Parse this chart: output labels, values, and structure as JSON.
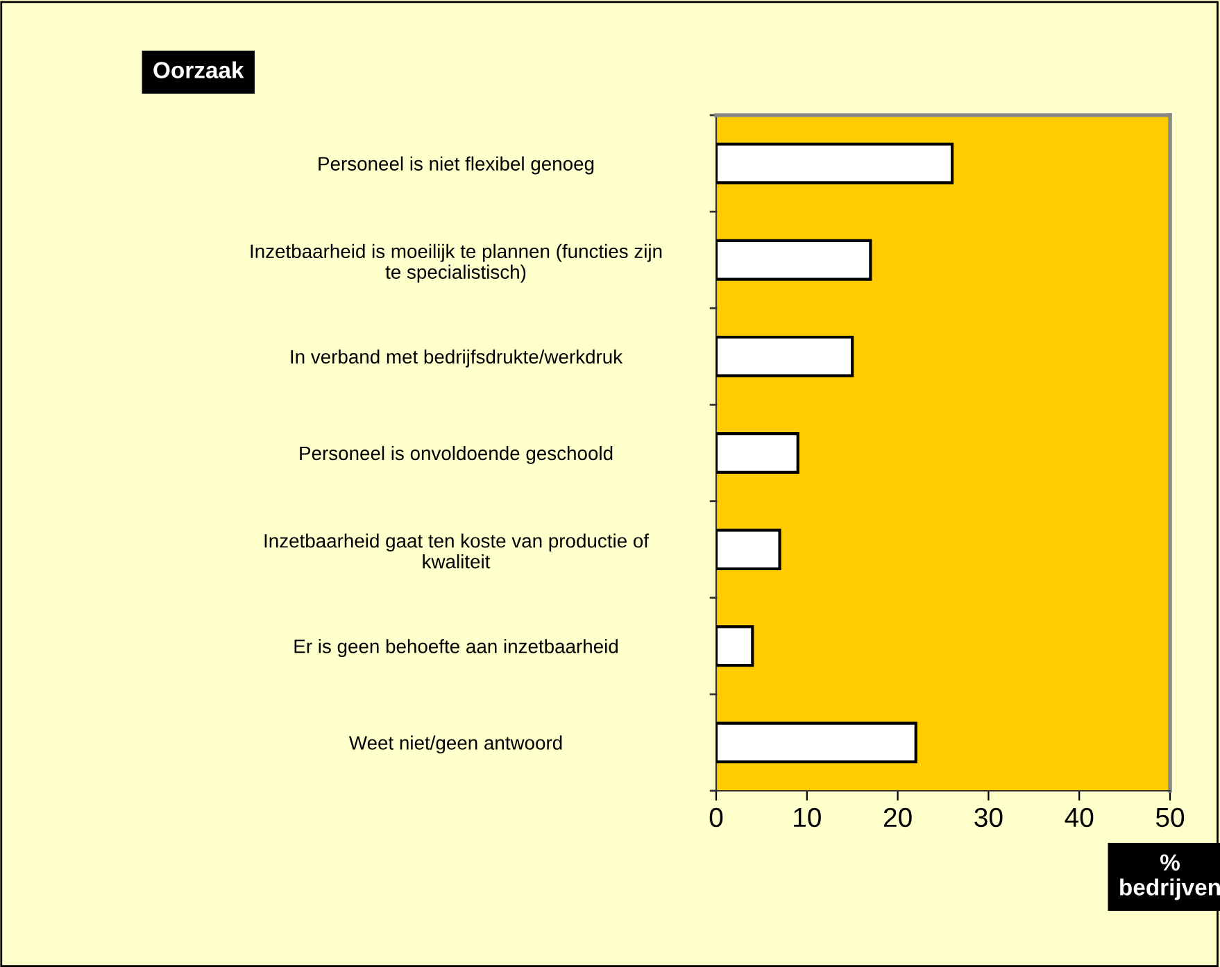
{
  "chart_data": {
    "type": "bar",
    "orientation": "horizontal",
    "ylabel": "Oorzaak",
    "xlabel": "% bedrijven",
    "categories": [
      "Personeel is niet flexibel genoeg",
      "Inzetbaarheid is moeilijk te plannen (functies zijn te specialistisch)",
      "In verband met bedrijfsdrukte/werkdruk",
      "Personeel is onvoldoende geschoold",
      "Inzetbaarheid gaat ten koste van productie of kwaliteit",
      "Er is geen behoefte aan inzetbaarheid",
      "Weet niet/geen antwoord"
    ],
    "values": [
      26,
      17,
      15,
      9,
      7,
      4,
      22
    ],
    "color": "#ffffff",
    "xlim": [
      0,
      50
    ],
    "xticks": [
      0,
      10,
      20,
      30,
      40,
      50
    ],
    "grid": false,
    "legend": false
  }
}
